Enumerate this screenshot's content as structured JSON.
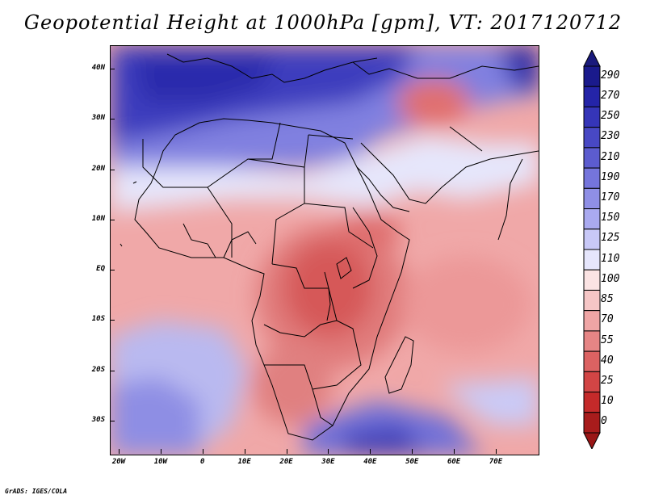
{
  "title": "Geopotential Height at 1000hPa [gpm], VT: 2017120712",
  "credit": "GrADS: IGES/COLA",
  "map": {
    "lat_labels": [
      {
        "text": "40N",
        "lat": 40
      },
      {
        "text": "30N",
        "lat": 30
      },
      {
        "text": "20N",
        "lat": 20
      },
      {
        "text": "10N",
        "lat": 10
      },
      {
        "text": "EQ",
        "lat": 0
      },
      {
        "text": "10S",
        "lat": -10
      },
      {
        "text": "20S",
        "lat": -20
      },
      {
        "text": "30S",
        "lat": -30
      }
    ],
    "lon_labels": [
      {
        "text": "20W",
        "lon": -20
      },
      {
        "text": "10W",
        "lon": -10
      },
      {
        "text": "0",
        "lon": 0
      },
      {
        "text": "10E",
        "lon": 10
      },
      {
        "text": "20E",
        "lon": 20
      },
      {
        "text": "30E",
        "lon": 30
      },
      {
        "text": "40E",
        "lon": 40
      },
      {
        "text": "50E",
        "lon": 50
      },
      {
        "text": "60E",
        "lon": 60
      },
      {
        "text": "70E",
        "lon": 70
      }
    ]
  },
  "colorbar": {
    "labels": [
      "290",
      "270",
      "250",
      "230",
      "210",
      "190",
      "170",
      "150",
      "125",
      "110",
      "100",
      "85",
      "70",
      "55",
      "40",
      "25",
      "10",
      "0"
    ],
    "colors": [
      "#1a1a8c",
      "#2424a8",
      "#3535b8",
      "#4848c4",
      "#5c5ccf",
      "#7575dc",
      "#8f8fe6",
      "#aaaaf0",
      "#c8c8f7",
      "#e6e6fc",
      "#fbe3e3",
      "#f6c6c6",
      "#efa5a5",
      "#e68585",
      "#dc6262",
      "#d24545",
      "#c42a2a",
      "#a81c1c"
    ],
    "top_arrow_color": "#1a1a7c",
    "bottom_arrow_color": "#9a1616"
  }
}
